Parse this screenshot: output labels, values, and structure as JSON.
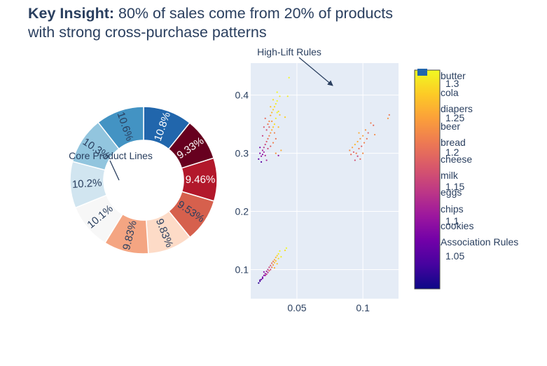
{
  "title": {
    "bold": "Key Insight:",
    "line1": " 80% of sales come from 20% of products",
    "line2": "with strong cross-purchase patterns"
  },
  "annotations": {
    "donut": "Core Product Lines",
    "scatter": "High-Lift Rules"
  },
  "legend": {
    "items": [
      "butter",
      "cola",
      "diapers",
      "beer",
      "bread",
      "cheese",
      "milk",
      "eggs",
      "chips",
      "cookies",
      "Association Rules"
    ]
  },
  "colorbar": {
    "ticks": [
      "1.3",
      "1.25",
      "1.2",
      "1.15",
      "1.1",
      "1.05"
    ],
    "range": [
      1.0,
      1.32
    ],
    "colors": [
      "#0d0887",
      "#46039f",
      "#7201a8",
      "#9c179e",
      "#bd3786",
      "#d8576b",
      "#ed7953",
      "#fb9f3a",
      "#fdca26",
      "#f0f921"
    ]
  },
  "chart_data": [
    {
      "type": "pie",
      "hole": true,
      "labels": [
        "butter",
        "cola",
        "diapers",
        "beer",
        "bread",
        "cheese",
        "milk",
        "eggs",
        "chips",
        "cookies"
      ],
      "values": [
        10.8,
        9.33,
        9.46,
        9.53,
        9.83,
        9.83,
        10.1,
        10.2,
        10.3,
        10.6
      ],
      "text": [
        "10.8%",
        "9.33%",
        "9.46%",
        "9.53%",
        "9.83%",
        "9.83%",
        "10.1%",
        "10.2%",
        "10.3%",
        "10.6%"
      ],
      "colors": [
        "#2166ac",
        "#67001f",
        "#b2182b",
        "#d6604d",
        "#fddbc7",
        "#f4a582",
        "#f7f7f7",
        "#d1e5f0",
        "#92c5de",
        "#4393c3"
      ],
      "text_colors": [
        "#ffffff",
        "#ffffff",
        "#ffffff",
        "#2a3f5f",
        "#2a3f5f",
        "#2a3f5f",
        "#2a3f5f",
        "#2a3f5f",
        "#2a3f5f",
        "#2a3f5f"
      ]
    },
    {
      "type": "scatter",
      "series": [
        {
          "name": "Association Rules"
        }
      ],
      "xlim": [
        0.015,
        0.127
      ],
      "ylim": [
        0.05,
        0.455
      ],
      "xticks": [
        {
          "v": 0.05,
          "label": "0.05"
        },
        {
          "v": 0.1,
          "label": "0.1"
        }
      ],
      "yticks": [
        {
          "v": 0.1,
          "label": "0.1"
        },
        {
          "v": 0.2,
          "label": "0.2"
        },
        {
          "v": 0.3,
          "label": "0.3"
        },
        {
          "v": 0.4,
          "label": "0.4"
        }
      ],
      "points": [
        [
          0.021,
          0.077,
          1.02
        ],
        [
          0.022,
          0.08,
          1.04
        ],
        [
          0.023,
          0.083,
          1.06
        ],
        [
          0.024,
          0.087,
          1.07
        ],
        [
          0.025,
          0.09,
          1.09
        ],
        [
          0.026,
          0.093,
          1.1
        ],
        [
          0.027,
          0.097,
          1.12
        ],
        [
          0.028,
          0.1,
          1.14
        ],
        [
          0.029,
          0.104,
          1.16
        ],
        [
          0.03,
          0.107,
          1.18
        ],
        [
          0.031,
          0.111,
          1.2
        ],
        [
          0.032,
          0.114,
          1.22
        ],
        [
          0.033,
          0.117,
          1.25
        ],
        [
          0.034,
          0.121,
          1.27
        ],
        [
          0.035,
          0.124,
          1.29
        ],
        [
          0.022,
          0.082,
          1.05
        ],
        [
          0.024,
          0.085,
          1.08
        ],
        [
          0.026,
          0.09,
          1.11
        ],
        [
          0.028,
          0.095,
          1.13
        ],
        [
          0.03,
          0.1,
          1.17
        ],
        [
          0.031,
          0.104,
          1.21
        ],
        [
          0.032,
          0.108,
          1.24
        ],
        [
          0.033,
          0.112,
          1.27
        ],
        [
          0.034,
          0.115,
          1.28
        ],
        [
          0.036,
          0.119,
          1.3
        ],
        [
          0.025,
          0.096,
          1.09
        ],
        [
          0.027,
          0.092,
          1.15
        ],
        [
          0.029,
          0.098,
          1.19
        ],
        [
          0.036,
          0.127,
          1.31
        ],
        [
          0.037,
          0.132,
          1.32
        ],
        [
          0.041,
          0.133,
          1.3
        ],
        [
          0.042,
          0.137,
          1.32
        ],
        [
          0.038,
          0.122,
          1.31
        ],
        [
          0.033,
          0.103,
          1.26
        ],
        [
          0.035,
          0.11,
          1.28
        ],
        [
          0.021,
          0.29,
          1.06
        ],
        [
          0.022,
          0.3,
          1.08
        ],
        [
          0.023,
          0.295,
          1.1
        ],
        [
          0.024,
          0.305,
          1.12
        ],
        [
          0.025,
          0.31,
          1.14
        ],
        [
          0.026,
          0.315,
          1.16
        ],
        [
          0.027,
          0.32,
          1.18
        ],
        [
          0.028,
          0.325,
          1.2
        ],
        [
          0.029,
          0.33,
          1.22
        ],
        [
          0.03,
          0.335,
          1.24
        ],
        [
          0.031,
          0.34,
          1.26
        ],
        [
          0.032,
          0.345,
          1.28
        ],
        [
          0.033,
          0.35,
          1.3
        ],
        [
          0.034,
          0.36,
          1.31
        ],
        [
          0.035,
          0.37,
          1.32
        ],
        [
          0.023,
          0.285,
          1.05
        ],
        [
          0.024,
          0.298,
          1.09
        ],
        [
          0.025,
          0.302,
          1.11
        ],
        [
          0.026,
          0.296,
          1.13
        ],
        [
          0.027,
          0.34,
          1.17
        ],
        [
          0.028,
          0.35,
          1.21
        ],
        [
          0.029,
          0.355,
          1.23
        ],
        [
          0.03,
          0.365,
          1.25
        ],
        [
          0.031,
          0.37,
          1.27
        ],
        [
          0.032,
          0.375,
          1.29
        ],
        [
          0.033,
          0.38,
          1.3
        ],
        [
          0.034,
          0.385,
          1.31
        ],
        [
          0.035,
          0.39,
          1.32
        ],
        [
          0.036,
          0.372,
          1.3
        ],
        [
          0.037,
          0.366,
          1.28
        ],
        [
          0.024,
          0.33,
          1.15
        ],
        [
          0.025,
          0.345,
          1.18
        ],
        [
          0.026,
          0.36,
          1.2
        ],
        [
          0.028,
          0.308,
          1.16
        ],
        [
          0.03,
          0.312,
          1.19
        ],
        [
          0.032,
          0.318,
          1.22
        ],
        [
          0.034,
          0.3,
          1.24
        ],
        [
          0.036,
          0.296,
          1.1
        ],
        [
          0.022,
          0.31,
          1.07
        ],
        [
          0.027,
          0.288,
          1.12
        ],
        [
          0.038,
          0.305,
          1.26
        ],
        [
          0.035,
          0.405,
          1.32
        ],
        [
          0.041,
          0.362,
          1.29
        ],
        [
          0.043,
          0.398,
          1.31
        ],
        [
          0.044,
          0.43,
          1.32
        ],
        [
          0.031,
          0.355,
          1.24
        ],
        [
          0.029,
          0.345,
          1.19
        ],
        [
          0.033,
          0.335,
          1.22
        ],
        [
          0.036,
          0.345,
          1.27
        ],
        [
          0.034,
          0.325,
          1.21
        ],
        [
          0.032,
          0.392,
          1.3
        ],
        [
          0.037,
          0.398,
          1.31
        ],
        [
          0.03,
          0.38,
          1.28
        ],
        [
          0.09,
          0.305,
          1.23
        ],
        [
          0.091,
          0.298,
          1.2
        ],
        [
          0.092,
          0.31,
          1.25
        ],
        [
          0.093,
          0.302,
          1.18
        ],
        [
          0.094,
          0.315,
          1.27
        ],
        [
          0.095,
          0.3,
          1.22
        ],
        [
          0.096,
          0.32,
          1.26
        ],
        [
          0.097,
          0.308,
          1.21
        ],
        [
          0.098,
          0.325,
          1.24
        ],
        [
          0.099,
          0.312,
          1.19
        ],
        [
          0.1,
          0.33,
          1.25
        ],
        [
          0.094,
          0.288,
          1.17
        ],
        [
          0.096,
          0.295,
          1.16
        ],
        [
          0.098,
          0.29,
          1.2
        ],
        [
          0.1,
          0.3,
          1.23
        ],
        [
          0.101,
          0.318,
          1.22
        ],
        [
          0.102,
          0.34,
          1.24
        ],
        [
          0.103,
          0.325,
          1.21
        ],
        [
          0.104,
          0.335,
          1.19
        ],
        [
          0.106,
          0.352,
          1.22
        ],
        [
          0.108,
          0.348,
          1.2
        ],
        [
          0.109,
          0.332,
          1.23
        ],
        [
          0.12,
          0.366,
          1.21
        ],
        [
          0.119,
          0.36,
          1.24
        ],
        [
          0.097,
          0.335,
          1.26
        ]
      ]
    }
  ]
}
